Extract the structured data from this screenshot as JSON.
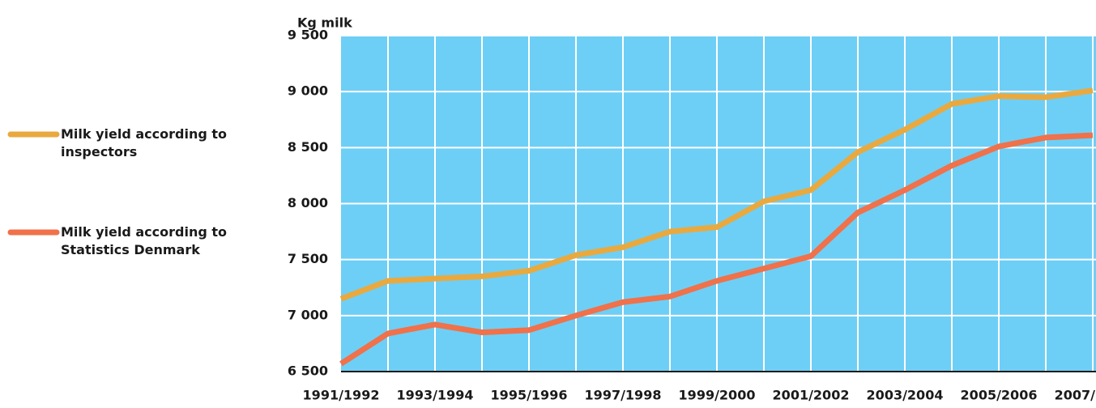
{
  "chart_data": {
    "type": "line",
    "ylabel": "Kg milk",
    "categories": [
      "1991/1992",
      null,
      "1993/1994",
      null,
      "1995/1996",
      null,
      "1997/1998",
      null,
      "1999/2000",
      null,
      "2001/2002",
      null,
      "2003/2004",
      null,
      "2005/2006",
      null,
      "2007/"
    ],
    "series": [
      {
        "name": "Milk yield according to inspectors",
        "color": "#e9a93f",
        "values": [
          7150,
          7310,
          7330,
          7350,
          7400,
          7540,
          7610,
          7750,
          7790,
          8020,
          8120,
          8460,
          8660,
          8890,
          8960,
          8950,
          9010
        ]
      },
      {
        "name": "Milk yield according to Statistics Denmark",
        "color": "#f0714a",
        "values": [
          6570,
          6840,
          6920,
          6850,
          6870,
          7000,
          7120,
          7170,
          7310,
          7420,
          7530,
          7920,
          8120,
          8340,
          8510,
          8590,
          8610
        ]
      }
    ],
    "ylim": [
      6500,
      9500
    ],
    "yticks": [
      {
        "value": 6500,
        "label": "6 500"
      },
      {
        "value": 7000,
        "label": "7 000"
      },
      {
        "value": 7500,
        "label": "7 500"
      },
      {
        "value": 8000,
        "label": "8 000"
      },
      {
        "value": 8500,
        "label": "8 500"
      },
      {
        "value": 9000,
        "label": "9 000"
      },
      {
        "value": 9500,
        "label": "9 500"
      }
    ],
    "grid": true,
    "background": "#6dcff6",
    "legend": "left"
  }
}
